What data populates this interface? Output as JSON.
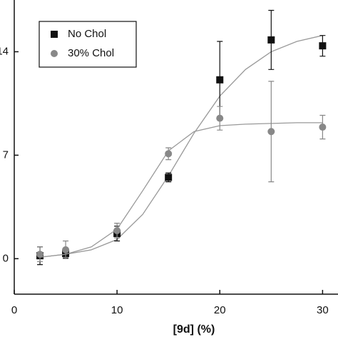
{
  "chart_data": {
    "type": "scatter",
    "x_label": "[9d] (%)",
    "xlim": [
      0,
      31.5
    ],
    "ylim": [
      -2.4,
      17.5
    ],
    "xticks": [
      0,
      10,
      20,
      30
    ],
    "yticks": [
      0,
      7,
      14
    ],
    "legend": "top-left",
    "series": [
      {
        "name": "No Chol",
        "color": "#111111",
        "marker": "square",
        "x": [
          2.5,
          5,
          10,
          15,
          20,
          25,
          30
        ],
        "values": [
          0.2,
          0.35,
          1.7,
          5.5,
          12.1,
          14.8,
          14.4
        ],
        "errors": [
          0.6,
          0.3,
          0.5,
          0.3,
          2.6,
          2.0,
          0.7
        ],
        "fit_x": [
          2.5,
          5,
          7.5,
          10,
          12.5,
          15,
          17.5,
          20,
          22.5,
          25,
          27.5,
          30
        ],
        "fit_values": [
          0.1,
          0.3,
          0.6,
          1.3,
          3,
          5.6,
          8.5,
          11,
          12.8,
          14,
          14.7,
          15.1
        ]
      },
      {
        "name": "30% Chol",
        "color": "#888888",
        "marker": "circle",
        "x": [
          2.5,
          5,
          10,
          15,
          20,
          25,
          30
        ],
        "values": [
          0.3,
          0.6,
          1.9,
          7.1,
          9.5,
          8.6,
          8.9
        ],
        "errors": [
          0.5,
          0.6,
          0.5,
          0.4,
          0.8,
          3.4,
          0.8
        ],
        "fit_x": [
          2.5,
          5,
          7.5,
          10,
          12.5,
          15,
          17.5,
          20,
          22.5,
          25,
          27.5,
          30
        ],
        "fit_values": [
          0.1,
          0.3,
          0.8,
          2,
          4.6,
          7.3,
          8.6,
          9.0,
          9.1,
          9.15,
          9.2,
          9.2
        ]
      }
    ]
  }
}
